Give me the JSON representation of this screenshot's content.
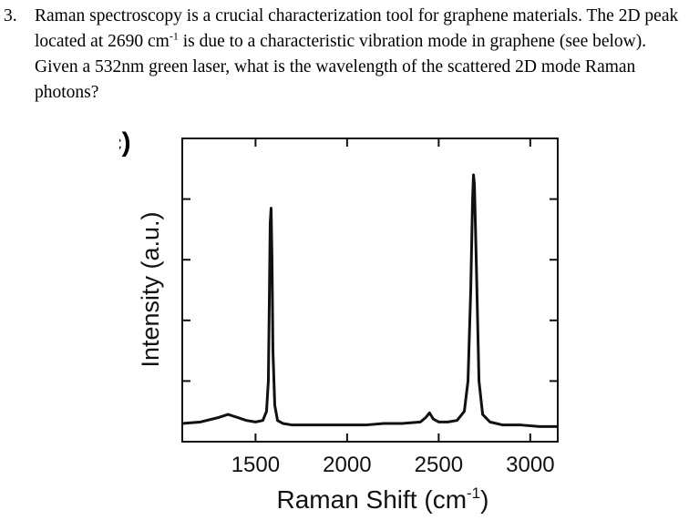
{
  "question": {
    "number": "3.",
    "text": [
      "Raman spectroscopy is a crucial characterization tool for graphene materials. The 2D peak located at 2690 cm",
      "-1",
      " is due to a characteristic vibration mode in graphene (see below). Given a 532nm green laser, what is the wavelength of the scattered 2D mode Raman photons?"
    ]
  },
  "chart_data": {
    "type": "line",
    "panel_label": "c)",
    "ylabel": "Intensity (a.u.)",
    "xlabel": [
      "Raman Shift (cm",
      "-1",
      ")"
    ],
    "x": [
      1100,
      1200,
      1300,
      1350,
      1400,
      1450,
      1500,
      1540,
      1560,
      1570,
      1575,
      1580,
      1585,
      1590,
      1595,
      1605,
      1620,
      1650,
      1700,
      1800,
      1900,
      2000,
      2100,
      2200,
      2300,
      2400,
      2430,
      2450,
      2470,
      2500,
      2550,
      2600,
      2640,
      2660,
      2675,
      2685,
      2690,
      2695,
      2705,
      2720,
      2740,
      2780,
      2850,
      2950,
      3050,
      3150
    ],
    "series": [
      {
        "color": "#111111",
        "values": [
          0.06,
          0.065,
          0.08,
          0.09,
          0.08,
          0.07,
          0.065,
          0.07,
          0.1,
          0.2,
          0.45,
          0.72,
          0.77,
          0.6,
          0.3,
          0.12,
          0.07,
          0.06,
          0.055,
          0.055,
          0.055,
          0.055,
          0.055,
          0.06,
          0.06,
          0.065,
          0.08,
          0.095,
          0.075,
          0.065,
          0.065,
          0.07,
          0.1,
          0.2,
          0.5,
          0.8,
          0.88,
          0.85,
          0.6,
          0.2,
          0.09,
          0.065,
          0.055,
          0.055,
          0.05,
          0.05
        ]
      }
    ],
    "xlim": [
      1100,
      3150
    ],
    "xticks": [
      1500,
      2000,
      2500,
      3000
    ],
    "ylim": [
      0,
      1
    ]
  }
}
